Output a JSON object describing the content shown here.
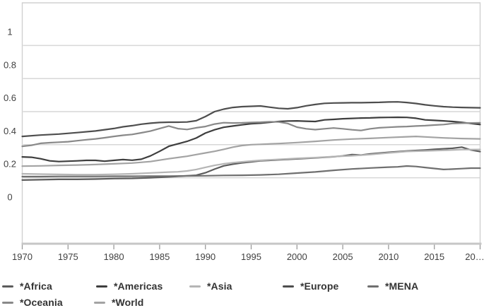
{
  "chart_data": {
    "type": "line",
    "title": "",
    "xlabel": "",
    "ylabel": "",
    "x_range": [
      1970,
      2020
    ],
    "y_axis": {
      "tick_values": [
        0,
        0.2,
        0.4,
        0.6,
        0.8,
        1
      ],
      "tick_labels": [
        "0",
        "0.2",
        "0.4",
        "0.6",
        "0.8",
        "1"
      ],
      "gridline_values": [
        0.1,
        0.3,
        0.5,
        0.7,
        0.9
      ],
      "grid": true
    },
    "x_axis": {
      "tick_values": [
        1970,
        1975,
        1980,
        1985,
        1990,
        1995,
        2000,
        2005,
        2010,
        2015,
        2020
      ],
      "tick_labels": [
        "1970",
        "1975",
        "1980",
        "1985",
        "1990",
        "1995",
        "2000",
        "2005",
        "2010",
        "2015",
        "20…"
      ]
    },
    "legend_position": "bottom",
    "colors": {
      "axis_text": "#414141",
      "gridline": "#d7d7d7",
      "plot_border": "#d0d0d0",
      "axis_line": "#c6c6c6",
      "tick_mark": "#9b9b9b",
      "legend_text": "#333333"
    },
    "series": [
      {
        "name": "*Africa",
        "color": "#5c5c5c",
        "points": [
          [
            1970,
            0.086
          ],
          [
            1972,
            0.088
          ],
          [
            1974,
            0.09
          ],
          [
            1976,
            0.09
          ],
          [
            1978,
            0.092
          ],
          [
            1980,
            0.095
          ],
          [
            1982,
            0.096
          ],
          [
            1984,
            0.1
          ],
          [
            1986,
            0.105
          ],
          [
            1988,
            0.112
          ],
          [
            1989,
            0.115
          ],
          [
            1990,
            0.13
          ],
          [
            1991,
            0.152
          ],
          [
            1992,
            0.172
          ],
          [
            1993,
            0.182
          ],
          [
            1994,
            0.19
          ],
          [
            1995,
            0.196
          ],
          [
            1996,
            0.202
          ],
          [
            1998,
            0.208
          ],
          [
            2000,
            0.214
          ],
          [
            2002,
            0.22
          ],
          [
            2004,
            0.227
          ],
          [
            2005,
            0.232
          ],
          [
            2006,
            0.24
          ],
          [
            2007,
            0.237
          ],
          [
            2008,
            0.244
          ],
          [
            2010,
            0.254
          ],
          [
            2012,
            0.262
          ],
          [
            2014,
            0.268
          ],
          [
            2015,
            0.272
          ],
          [
            2016,
            0.275
          ],
          [
            2017,
            0.278
          ],
          [
            2018,
            0.285
          ],
          [
            2019,
            0.268
          ],
          [
            2020,
            0.258
          ]
        ]
      },
      {
        "name": "*Americas",
        "color": "#3e3e3e",
        "points": [
          [
            1970,
            0.226
          ],
          [
            1971,
            0.224
          ],
          [
            1972,
            0.215
          ],
          [
            1973,
            0.202
          ],
          [
            1974,
            0.198
          ],
          [
            1975,
            0.2
          ],
          [
            1976,
            0.202
          ],
          [
            1977,
            0.205
          ],
          [
            1978,
            0.205
          ],
          [
            1979,
            0.2
          ],
          [
            1980,
            0.205
          ],
          [
            1981,
            0.21
          ],
          [
            1982,
            0.206
          ],
          [
            1983,
            0.212
          ],
          [
            1984,
            0.232
          ],
          [
            1985,
            0.26
          ],
          [
            1986,
            0.29
          ],
          [
            1987,
            0.305
          ],
          [
            1988,
            0.32
          ],
          [
            1989,
            0.34
          ],
          [
            1990,
            0.37
          ],
          [
            1991,
            0.39
          ],
          [
            1992,
            0.405
          ],
          [
            1993,
            0.413
          ],
          [
            1994,
            0.42
          ],
          [
            1995,
            0.427
          ],
          [
            1996,
            0.43
          ],
          [
            1997,
            0.435
          ],
          [
            1998,
            0.44
          ],
          [
            1999,
            0.443
          ],
          [
            2000,
            0.444
          ],
          [
            2001,
            0.442
          ],
          [
            2002,
            0.44
          ],
          [
            2003,
            0.45
          ],
          [
            2004,
            0.453
          ],
          [
            2005,
            0.457
          ],
          [
            2006,
            0.459
          ],
          [
            2007,
            0.461
          ],
          [
            2008,
            0.462
          ],
          [
            2009,
            0.464
          ],
          [
            2010,
            0.465
          ],
          [
            2011,
            0.466
          ],
          [
            2012,
            0.465
          ],
          [
            2013,
            0.46
          ],
          [
            2014,
            0.45
          ],
          [
            2015,
            0.447
          ],
          [
            2016,
            0.444
          ],
          [
            2017,
            0.44
          ],
          [
            2018,
            0.435
          ],
          [
            2019,
            0.428
          ],
          [
            2020,
            0.422
          ]
        ]
      },
      {
        "name": "*Asia",
        "color": "#b5b5b5",
        "points": [
          [
            1970,
            0.124
          ],
          [
            1972,
            0.122
          ],
          [
            1974,
            0.12
          ],
          [
            1976,
            0.119
          ],
          [
            1978,
            0.119
          ],
          [
            1980,
            0.121
          ],
          [
            1982,
            0.124
          ],
          [
            1984,
            0.129
          ],
          [
            1986,
            0.134
          ],
          [
            1987,
            0.136
          ],
          [
            1988,
            0.141
          ],
          [
            1989,
            0.15
          ],
          [
            1990,
            0.163
          ],
          [
            1991,
            0.175
          ],
          [
            1992,
            0.184
          ],
          [
            1993,
            0.191
          ],
          [
            1994,
            0.196
          ],
          [
            1995,
            0.201
          ],
          [
            1996,
            0.205
          ],
          [
            1998,
            0.211
          ],
          [
            2000,
            0.217
          ],
          [
            2002,
            0.222
          ],
          [
            2004,
            0.228
          ],
          [
            2006,
            0.233
          ],
          [
            2008,
            0.24
          ],
          [
            2010,
            0.25
          ],
          [
            2012,
            0.259
          ],
          [
            2014,
            0.262
          ],
          [
            2016,
            0.266
          ],
          [
            2018,
            0.27
          ],
          [
            2020,
            0.271
          ]
        ]
      },
      {
        "name": "*Europe",
        "color": "#4e4e4e",
        "points": [
          [
            1970,
            0.35
          ],
          [
            1972,
            0.358
          ],
          [
            1974,
            0.364
          ],
          [
            1976,
            0.373
          ],
          [
            1978,
            0.383
          ],
          [
            1980,
            0.398
          ],
          [
            1981,
            0.408
          ],
          [
            1982,
            0.415
          ],
          [
            1983,
            0.424
          ],
          [
            1984,
            0.43
          ],
          [
            1985,
            0.434
          ],
          [
            1986,
            0.436
          ],
          [
            1987,
            0.436
          ],
          [
            1988,
            0.437
          ],
          [
            1989,
            0.445
          ],
          [
            1990,
            0.47
          ],
          [
            1991,
            0.5
          ],
          [
            1992,
            0.515
          ],
          [
            1993,
            0.525
          ],
          [
            1994,
            0.53
          ],
          [
            1995,
            0.532
          ],
          [
            1996,
            0.534
          ],
          [
            1997,
            0.527
          ],
          [
            1998,
            0.52
          ],
          [
            1999,
            0.517
          ],
          [
            2000,
            0.524
          ],
          [
            2001,
            0.535
          ],
          [
            2002,
            0.543
          ],
          [
            2003,
            0.55
          ],
          [
            2004,
            0.552
          ],
          [
            2005,
            0.553
          ],
          [
            2006,
            0.554
          ],
          [
            2007,
            0.554
          ],
          [
            2008,
            0.555
          ],
          [
            2009,
            0.556
          ],
          [
            2010,
            0.558
          ],
          [
            2011,
            0.559
          ],
          [
            2012,
            0.555
          ],
          [
            2013,
            0.549
          ],
          [
            2014,
            0.541
          ],
          [
            2015,
            0.535
          ],
          [
            2016,
            0.53
          ],
          [
            2017,
            0.527
          ],
          [
            2018,
            0.525
          ],
          [
            2019,
            0.524
          ],
          [
            2020,
            0.523
          ]
        ]
      },
      {
        "name": "*MENA",
        "color": "#6f6f6f",
        "points": [
          [
            1970,
            0.107
          ],
          [
            1972,
            0.107
          ],
          [
            1974,
            0.108
          ],
          [
            1976,
            0.108
          ],
          [
            1978,
            0.108
          ],
          [
            1980,
            0.109
          ],
          [
            1982,
            0.109
          ],
          [
            1984,
            0.11
          ],
          [
            1986,
            0.11
          ],
          [
            1988,
            0.111
          ],
          [
            1990,
            0.112
          ],
          [
            1992,
            0.114
          ],
          [
            1994,
            0.115
          ],
          [
            1996,
            0.117
          ],
          [
            1998,
            0.121
          ],
          [
            2000,
            0.128
          ],
          [
            2002,
            0.135
          ],
          [
            2004,
            0.145
          ],
          [
            2006,
            0.153
          ],
          [
            2008,
            0.159
          ],
          [
            2010,
            0.164
          ],
          [
            2011,
            0.166
          ],
          [
            2012,
            0.171
          ],
          [
            2013,
            0.168
          ],
          [
            2014,
            0.162
          ],
          [
            2015,
            0.156
          ],
          [
            2016,
            0.15
          ],
          [
            2017,
            0.152
          ],
          [
            2018,
            0.155
          ],
          [
            2019,
            0.158
          ],
          [
            2020,
            0.158
          ]
        ]
      },
      {
        "name": "*Oceania",
        "color": "#898989",
        "points": [
          [
            1970,
            0.29
          ],
          [
            1971,
            0.296
          ],
          [
            1972,
            0.308
          ],
          [
            1973,
            0.312
          ],
          [
            1974,
            0.315
          ],
          [
            1975,
            0.318
          ],
          [
            1976,
            0.324
          ],
          [
            1977,
            0.33
          ],
          [
            1978,
            0.335
          ],
          [
            1979,
            0.342
          ],
          [
            1980,
            0.35
          ],
          [
            1981,
            0.357
          ],
          [
            1982,
            0.362
          ],
          [
            1983,
            0.372
          ],
          [
            1984,
            0.382
          ],
          [
            1985,
            0.398
          ],
          [
            1986,
            0.413
          ],
          [
            1987,
            0.397
          ],
          [
            1988,
            0.392
          ],
          [
            1989,
            0.402
          ],
          [
            1990,
            0.41
          ],
          [
            1991,
            0.425
          ],
          [
            1992,
            0.433
          ],
          [
            1993,
            0.431
          ],
          [
            1994,
            0.432
          ],
          [
            1995,
            0.434
          ],
          [
            1996,
            0.436
          ],
          [
            1997,
            0.439
          ],
          [
            1998,
            0.437
          ],
          [
            1999,
            0.428
          ],
          [
            2000,
            0.406
          ],
          [
            2001,
            0.396
          ],
          [
            2002,
            0.391
          ],
          [
            2003,
            0.396
          ],
          [
            2004,
            0.401
          ],
          [
            2005,
            0.396
          ],
          [
            2006,
            0.39
          ],
          [
            2007,
            0.386
          ],
          [
            2008,
            0.396
          ],
          [
            2009,
            0.402
          ],
          [
            2010,
            0.405
          ],
          [
            2011,
            0.408
          ],
          [
            2012,
            0.41
          ],
          [
            2013,
            0.413
          ],
          [
            2014,
            0.415
          ],
          [
            2015,
            0.419
          ],
          [
            2016,
            0.422
          ],
          [
            2017,
            0.428
          ],
          [
            2018,
            0.43
          ],
          [
            2019,
            0.431
          ],
          [
            2020,
            0.432
          ]
        ]
      },
      {
        "name": "*World",
        "color": "#a3a3a3",
        "points": [
          [
            1970,
            0.17
          ],
          [
            1972,
            0.172
          ],
          [
            1974,
            0.175
          ],
          [
            1976,
            0.177
          ],
          [
            1978,
            0.18
          ],
          [
            1980,
            0.184
          ],
          [
            1982,
            0.189
          ],
          [
            1984,
            0.198
          ],
          [
            1986,
            0.215
          ],
          [
            1988,
            0.23
          ],
          [
            1989,
            0.24
          ],
          [
            1990,
            0.25
          ],
          [
            1991,
            0.26
          ],
          [
            1992,
            0.272
          ],
          [
            1993,
            0.285
          ],
          [
            1994,
            0.295
          ],
          [
            1995,
            0.3
          ],
          [
            1996,
            0.302
          ],
          [
            1998,
            0.307
          ],
          [
            2000,
            0.313
          ],
          [
            2002,
            0.32
          ],
          [
            2004,
            0.328
          ],
          [
            2006,
            0.334
          ],
          [
            2008,
            0.338
          ],
          [
            2010,
            0.343
          ],
          [
            2012,
            0.348
          ],
          [
            2013,
            0.35
          ],
          [
            2014,
            0.347
          ],
          [
            2016,
            0.341
          ],
          [
            2018,
            0.337
          ],
          [
            2020,
            0.335
          ]
        ]
      }
    ]
  }
}
